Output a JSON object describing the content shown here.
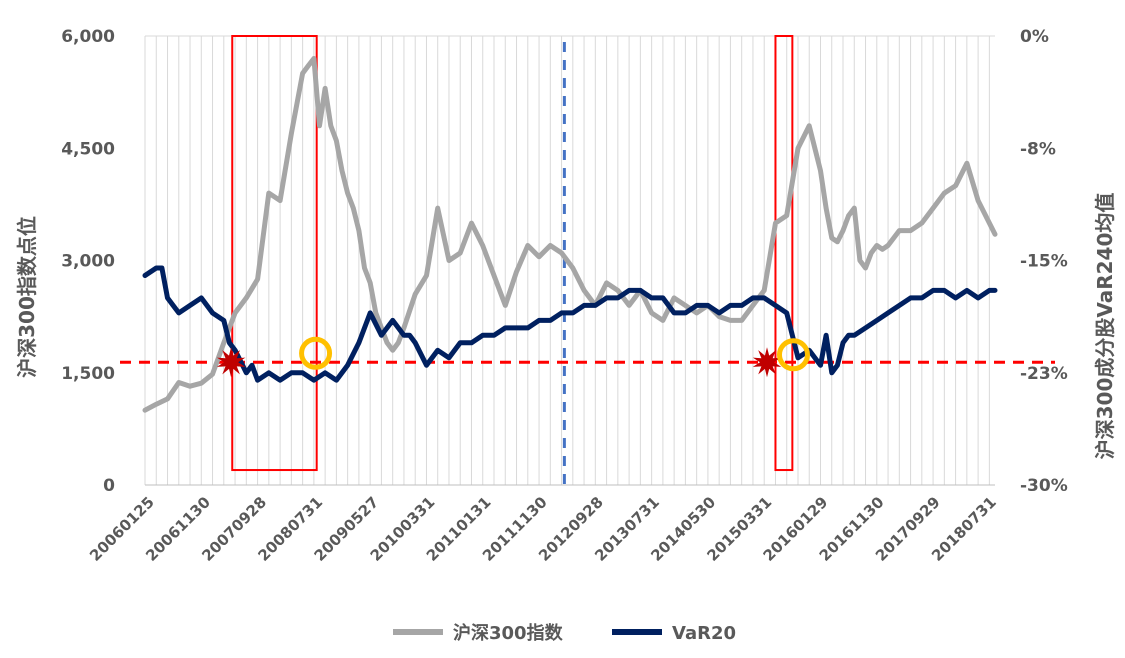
{
  "chart_data": {
    "type": "line",
    "y_left": {
      "label": "沪深300指数点位",
      "range": [
        0,
        6000
      ],
      "ticks": [
        "0",
        "1,500",
        "3,000",
        "4,500",
        "6,000"
      ],
      "tick_values": [
        0,
        1500,
        3000,
        4500,
        6000
      ]
    },
    "y_right": {
      "label": "沪深300成分股VaR240均值",
      "range": [
        -30,
        0
      ],
      "ticks": [
        "-30%",
        "-23%",
        "-15%",
        "-8%",
        "0%"
      ],
      "tick_values": [
        -30,
        -22.5,
        -15,
        -7.5,
        0
      ]
    },
    "x_ticks": [
      "20060125",
      "20061130",
      "20070928",
      "20080731",
      "20090527",
      "20100331",
      "20110131",
      "20111130",
      "20120928",
      "20130731",
      "20140530",
      "20150331",
      "20160129",
      "20161130",
      "20170929",
      "20180731"
    ],
    "x_range": [
      0,
      151
    ],
    "grid": "vertical",
    "legend_position": "bottom",
    "series": [
      {
        "name": "沪深300指数",
        "axis": "left",
        "color": "#a6a6a6",
        "x": [
          0,
          2,
          4,
          6,
          8,
          10,
          12,
          14,
          16,
          18,
          20,
          22,
          24,
          26,
          28,
          29,
          30,
          31,
          32,
          33,
          34,
          35,
          36,
          37,
          38,
          39,
          40,
          41,
          42,
          43,
          44,
          45,
          46,
          48,
          50,
          52,
          54,
          56,
          58,
          60,
          62,
          64,
          66,
          68,
          70,
          72,
          74,
          76,
          78,
          80,
          82,
          84,
          86,
          88,
          90,
          92,
          94,
          96,
          98,
          100,
          102,
          104,
          106,
          108,
          110,
          112,
          114,
          116,
          118,
          120,
          121,
          122,
          123,
          124,
          125,
          126,
          127,
          128,
          129,
          130,
          131,
          132,
          133,
          134,
          136,
          138,
          140,
          142,
          144,
          146,
          148,
          150,
          152
        ],
        "values": [
          1000,
          1080,
          1150,
          1370,
          1320,
          1360,
          1480,
          1900,
          2300,
          2500,
          2750,
          3900,
          3800,
          4700,
          5500,
          5600,
          5700,
          4800,
          5300,
          4800,
          4600,
          4200,
          3900,
          3700,
          3400,
          2900,
          2700,
          2300,
          2100,
          1900,
          1800,
          1900,
          2100,
          2550,
          2800,
          3700,
          3000,
          3100,
          3500,
          3200,
          2800,
          2400,
          2850,
          3200,
          3050,
          3200,
          3100,
          2900,
          2600,
          2400,
          2700,
          2600,
          2400,
          2600,
          2300,
          2200,
          2500,
          2400,
          2300,
          2400,
          2250,
          2200,
          2200,
          2400,
          2600,
          3500,
          3600,
          4500,
          4800,
          4200,
          3700,
          3300,
          3250,
          3400,
          3600,
          3700,
          3000,
          2900,
          3100,
          3200,
          3150,
          3200,
          3300,
          3400,
          3400,
          3500,
          3700,
          3900,
          4000,
          4300,
          3800,
          3500,
          3350
        ]
      },
      {
        "name": "VaR20",
        "axis": "right",
        "color": "#002060",
        "x": [
          0,
          2,
          3,
          4,
          5,
          6,
          8,
          10,
          12,
          14,
          15,
          16,
          18,
          19,
          20,
          22,
          24,
          26,
          28,
          30,
          32,
          34,
          36,
          38,
          40,
          42,
          44,
          46,
          47,
          48,
          50,
          52,
          54,
          56,
          58,
          60,
          62,
          64,
          66,
          68,
          70,
          72,
          74,
          76,
          78,
          80,
          82,
          84,
          86,
          88,
          90,
          92,
          94,
          96,
          98,
          100,
          102,
          104,
          106,
          108,
          110,
          112,
          114,
          116,
          118,
          120,
          121,
          122,
          123,
          124,
          125,
          126,
          128,
          130,
          132,
          134,
          136,
          138,
          140,
          142,
          144,
          146,
          148,
          150,
          152
        ],
        "values": [
          -16.0,
          -15.5,
          -15.5,
          -17.5,
          -18.0,
          -18.5,
          -18.0,
          -17.5,
          -18.5,
          -19.0,
          -20.5,
          -21.0,
          -22.5,
          -22.0,
          -23.0,
          -22.5,
          -23.0,
          -22.5,
          -22.5,
          -23.0,
          -22.5,
          -23.0,
          -22.0,
          -20.5,
          -18.5,
          -20.0,
          -19.0,
          -20.0,
          -20.0,
          -20.5,
          -22.0,
          -21.0,
          -21.5,
          -20.5,
          -20.5,
          -20.0,
          -20.0,
          -19.5,
          -19.5,
          -19.5,
          -19.0,
          -19.0,
          -18.5,
          -18.5,
          -18.0,
          -18.0,
          -17.5,
          -17.5,
          -17.0,
          -17.0,
          -17.5,
          -17.5,
          -18.5,
          -18.5,
          -18.0,
          -18.0,
          -18.5,
          -18.0,
          -18.0,
          -17.5,
          -17.5,
          -18.0,
          -18.5,
          -21.5,
          -21.0,
          -22.0,
          -20.0,
          -22.5,
          -22.0,
          -20.5,
          -20.0,
          -20.0,
          -19.5,
          -19.0,
          -18.5,
          -18.0,
          -17.5,
          -17.5,
          -17.0,
          -17.0,
          -17.5,
          -17.0,
          -17.5,
          -17.0,
          -17.0
        ]
      }
    ],
    "annotations": {
      "threshold_line": {
        "axis": "right",
        "value": -21.8,
        "color": "#ff0000",
        "style": "dashed"
      },
      "vertical_line": {
        "x": 74.5,
        "color": "#4472c4",
        "style": "dashed"
      },
      "highlight_boxes": [
        {
          "x_start": 15.5,
          "x_end": 30.5,
          "y_bottom": 200,
          "y_top": 6000,
          "color": "#ff0000"
        },
        {
          "x_start": 112,
          "x_end": 115,
          "y_bottom": 200,
          "y_top": 6000,
          "color": "#ff0000"
        }
      ],
      "star_markers": [
        {
          "x": 15.3,
          "value": -21.8
        },
        {
          "x": 110.5,
          "value": -21.8
        }
      ],
      "circle_markers": [
        {
          "x": 30.3,
          "value": -21.2
        },
        {
          "x": 115.2,
          "value": -21.3
        }
      ],
      "colors": {
        "star": "#c00000",
        "circle": "#ffc000"
      }
    }
  }
}
